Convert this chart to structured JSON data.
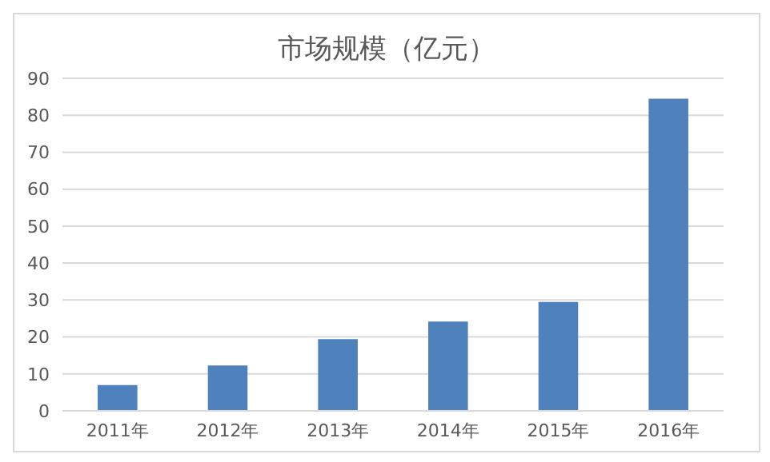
{
  "chart_data": {
    "type": "bar",
    "title": "市场规模（亿元）",
    "categories": [
      "2011年",
      "2012年",
      "2013年",
      "2014年",
      "2015年",
      "2016年"
    ],
    "values": [
      7,
      12.3,
      19.4,
      24.2,
      29.5,
      84.5
    ],
    "color": "#4f81bd",
    "ylim": [
      0,
      90
    ],
    "yticks": [
      0,
      10,
      20,
      30,
      40,
      50,
      60,
      70,
      80,
      90
    ],
    "grid": "y"
  }
}
